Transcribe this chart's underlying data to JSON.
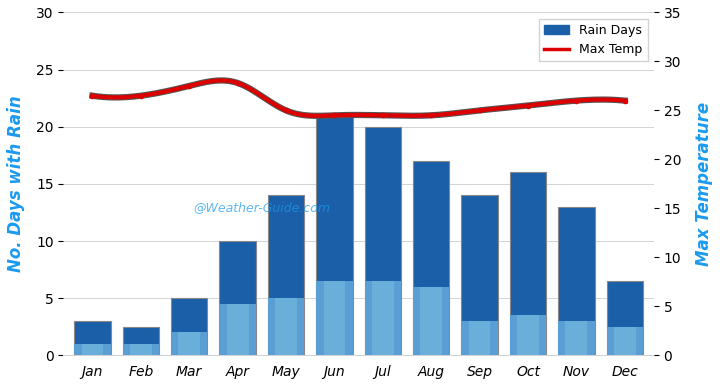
{
  "months": [
    "Jan",
    "Feb",
    "Mar",
    "Apr",
    "May",
    "Jun",
    "Jul",
    "Aug",
    "Sep",
    "Oct",
    "Nov",
    "Dec"
  ],
  "rain_days": [
    3,
    2.5,
    5,
    10,
    14,
    21,
    20,
    17,
    14,
    16,
    13,
    6.5
  ],
  "rain_days_inner": [
    1,
    1,
    2,
    4.5,
    5,
    6.5,
    6.5,
    6,
    3,
    3.5,
    3,
    2.5
  ],
  "max_temp": [
    26.5,
    26.5,
    27.5,
    27.8,
    25,
    24.5,
    24.5,
    24.5,
    25,
    25.5,
    26,
    26
  ],
  "ylim_left": [
    0,
    30
  ],
  "ylim_right": [
    0,
    35
  ],
  "bar_color_outer": "#1a5fa8",
  "bar_color_inner": "#5a9fd4",
  "bar_edge_color": "#888888",
  "temp_line_color": "#dd0000",
  "temp_shadow_color": "#555555",
  "background_color": "#ffffff",
  "ylabel_left": "No. Days with Rain",
  "ylabel_right": "Max Temperature",
  "title": "",
  "watermark": "@Weather-Guide.com",
  "legend_rain": "Rain Days",
  "legend_temp": "Max Temp",
  "left_label_color": "#1a9af0",
  "right_label_color": "#1a9af0"
}
